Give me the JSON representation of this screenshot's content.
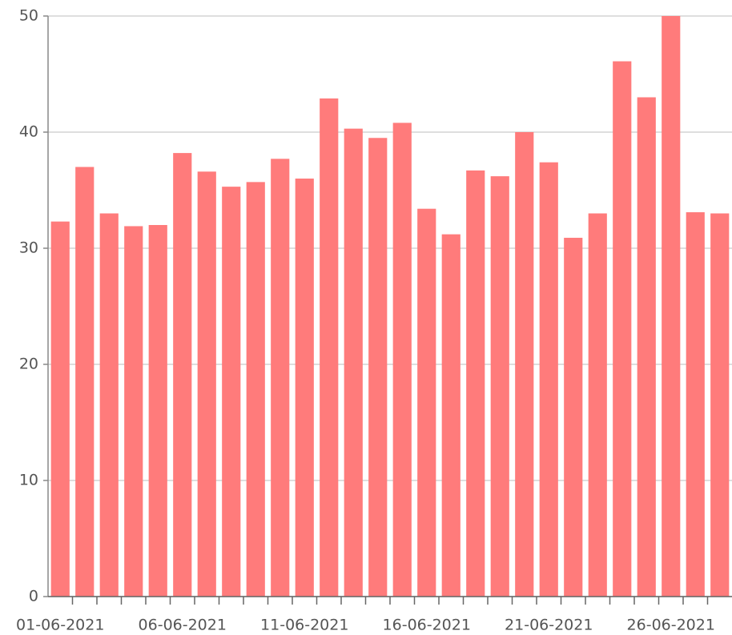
{
  "chart_data": {
    "type": "bar",
    "categories": [
      "01-06-2021",
      null,
      null,
      null,
      null,
      "06-06-2021",
      null,
      null,
      null,
      null,
      "11-06-2021",
      null,
      null,
      null,
      null,
      "16-06-2021",
      null,
      null,
      null,
      null,
      "21-06-2021",
      null,
      null,
      null,
      null,
      "26-06-2021",
      null,
      null
    ],
    "values": [
      32.3,
      37,
      33,
      31.9,
      32,
      38.2,
      36.6,
      35.3,
      35.7,
      37.7,
      36,
      42.9,
      40.3,
      39.5,
      40.8,
      33.4,
      31.2,
      36.7,
      36.2,
      40,
      37.4,
      30.9,
      33,
      46.1,
      43,
      50,
      33.1,
      33
    ],
    "color": "#ff7b7b",
    "ylim": [
      0,
      50
    ],
    "yticks": [
      0,
      10,
      20,
      30,
      40,
      50
    ],
    "grid": true
  }
}
